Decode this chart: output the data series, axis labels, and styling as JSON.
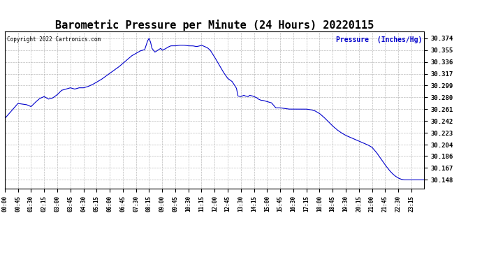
{
  "title": "Barometric Pressure per Minute (24 Hours) 20220115",
  "copyright_text": "Copyright 2022 Cartronics.com",
  "ylabel": "Pressure  (Inches/Hg)",
  "ylabel_color": "#0000cc",
  "line_color": "#0000cc",
  "background_color": "#ffffff",
  "grid_color": "#aaaaaa",
  "title_fontsize": 11,
  "yticks": [
    30.148,
    30.167,
    30.186,
    30.204,
    30.223,
    30.242,
    30.261,
    30.28,
    30.299,
    30.317,
    30.336,
    30.355,
    30.374
  ],
  "ymin": 30.134,
  "ymax": 30.385,
  "xtick_labels": [
    "00:00",
    "00:45",
    "01:30",
    "02:15",
    "03:00",
    "03:45",
    "04:30",
    "05:15",
    "06:00",
    "06:45",
    "07:30",
    "08:15",
    "09:00",
    "09:45",
    "10:30",
    "11:15",
    "12:00",
    "12:45",
    "13:30",
    "14:15",
    "15:00",
    "15:45",
    "16:30",
    "17:15",
    "18:00",
    "18:45",
    "19:30",
    "20:15",
    "21:00",
    "21:45",
    "22:30",
    "23:15"
  ],
  "waypoints": [
    [
      0,
      30.246
    ],
    [
      30,
      30.262
    ],
    [
      45,
      30.27
    ],
    [
      75,
      30.268
    ],
    [
      90,
      30.265
    ],
    [
      105,
      30.272
    ],
    [
      120,
      30.278
    ],
    [
      135,
      30.281
    ],
    [
      150,
      30.277
    ],
    [
      165,
      30.279
    ],
    [
      180,
      30.284
    ],
    [
      195,
      30.291
    ],
    [
      210,
      30.293
    ],
    [
      225,
      30.295
    ],
    [
      240,
      30.293
    ],
    [
      255,
      30.295
    ],
    [
      270,
      30.295
    ],
    [
      285,
      30.297
    ],
    [
      300,
      30.3
    ],
    [
      315,
      30.304
    ],
    [
      330,
      30.308
    ],
    [
      345,
      30.313
    ],
    [
      360,
      30.318
    ],
    [
      375,
      30.323
    ],
    [
      390,
      30.328
    ],
    [
      405,
      30.334
    ],
    [
      420,
      30.34
    ],
    [
      435,
      30.346
    ],
    [
      450,
      30.35
    ],
    [
      465,
      30.354
    ],
    [
      480,
      30.356
    ],
    [
      490,
      30.37
    ],
    [
      495,
      30.374
    ],
    [
      500,
      30.368
    ],
    [
      505,
      30.358
    ],
    [
      515,
      30.352
    ],
    [
      525,
      30.355
    ],
    [
      535,
      30.358
    ],
    [
      540,
      30.355
    ],
    [
      550,
      30.357
    ],
    [
      560,
      30.36
    ],
    [
      570,
      30.362
    ],
    [
      585,
      30.362
    ],
    [
      600,
      30.363
    ],
    [
      615,
      30.363
    ],
    [
      630,
      30.362
    ],
    [
      645,
      30.362
    ],
    [
      655,
      30.361
    ],
    [
      660,
      30.361
    ],
    [
      670,
      30.362
    ],
    [
      675,
      30.363
    ],
    [
      685,
      30.361
    ],
    [
      695,
      30.359
    ],
    [
      705,
      30.355
    ],
    [
      720,
      30.344
    ],
    [
      735,
      30.332
    ],
    [
      750,
      30.32
    ],
    [
      765,
      30.31
    ],
    [
      780,
      30.305
    ],
    [
      790,
      30.298
    ],
    [
      795,
      30.294
    ],
    [
      800,
      30.282
    ],
    [
      810,
      30.281
    ],
    [
      820,
      30.283
    ],
    [
      825,
      30.282
    ],
    [
      835,
      30.281
    ],
    [
      840,
      30.283
    ],
    [
      850,
      30.282
    ],
    [
      855,
      30.281
    ],
    [
      865,
      30.279
    ],
    [
      870,
      30.277
    ],
    [
      880,
      30.275
    ],
    [
      885,
      30.275
    ],
    [
      900,
      30.273
    ],
    [
      915,
      30.271
    ],
    [
      930,
      30.263
    ],
    [
      945,
      30.263
    ],
    [
      960,
      30.262
    ],
    [
      975,
      30.261
    ],
    [
      990,
      30.261
    ],
    [
      1005,
      30.261
    ],
    [
      1020,
      30.261
    ],
    [
      1035,
      30.261
    ],
    [
      1050,
      30.26
    ],
    [
      1065,
      30.258
    ],
    [
      1080,
      30.254
    ],
    [
      1095,
      30.248
    ],
    [
      1110,
      30.241
    ],
    [
      1125,
      30.234
    ],
    [
      1140,
      30.228
    ],
    [
      1155,
      30.223
    ],
    [
      1170,
      30.219
    ],
    [
      1185,
      30.216
    ],
    [
      1200,
      30.213
    ],
    [
      1215,
      30.21
    ],
    [
      1230,
      30.207
    ],
    [
      1245,
      30.204
    ],
    [
      1260,
      30.2
    ],
    [
      1275,
      30.192
    ],
    [
      1290,
      30.182
    ],
    [
      1305,
      30.172
    ],
    [
      1320,
      30.163
    ],
    [
      1330,
      30.158
    ],
    [
      1340,
      30.154
    ],
    [
      1350,
      30.151
    ],
    [
      1360,
      30.149
    ],
    [
      1370,
      30.148
    ],
    [
      1439,
      30.148
    ]
  ]
}
